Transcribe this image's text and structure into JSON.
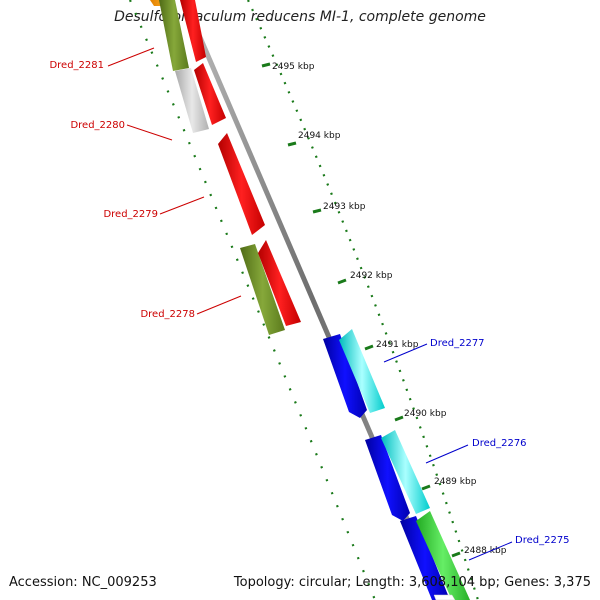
{
  "title": "Desulfotomaculum reducens MI-1, complete genome",
  "accession": "Accession: NC_009253",
  "topology": "Topology: circular; Length: 3,608,104 bp; Genes: 3,375",
  "scale_ticks": [
    {
      "label": "2495 kbp"
    },
    {
      "label": "2494 kbp"
    },
    {
      "label": "2493 kbp"
    },
    {
      "label": "2492 kbp"
    },
    {
      "label": "2491 kbp"
    },
    {
      "label": "2490 kbp"
    },
    {
      "label": "2489 kbp"
    },
    {
      "label": "2488 kbp"
    }
  ],
  "gene_labels": [
    {
      "label": "Dred_2281",
      "color": "#cc0000"
    },
    {
      "label": "Dred_2280",
      "color": "#cc0000"
    },
    {
      "label": "Dred_2279",
      "color": "#cc0000"
    },
    {
      "label": "Dred_2278",
      "color": "#cc0000"
    },
    {
      "label": "Dred_2277",
      "color": "#0000cc"
    },
    {
      "label": "Dred_2276",
      "color": "#0000cc"
    },
    {
      "label": "Dred_2275",
      "color": "#0000cc"
    }
  ],
  "colors": {
    "red_gene": "#ff0000",
    "blue_gene": "#0000ee",
    "cyan_gene": "#00eeee",
    "olive_gene": "#6b8e23",
    "green_gene": "#33cc33",
    "gray_gene": "#c8c8c8",
    "orange_gene": "#ff9900",
    "backbone": "#888888",
    "tick_green": "#006400"
  }
}
